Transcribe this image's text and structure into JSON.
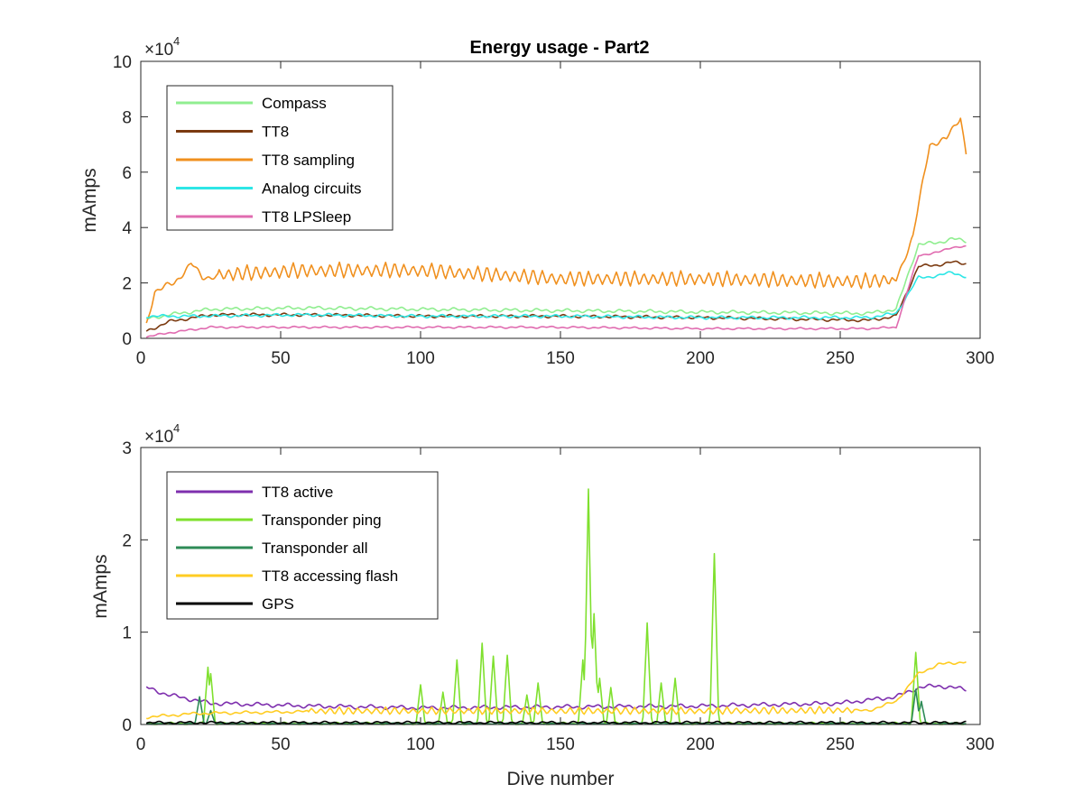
{
  "chart_data": [
    {
      "type": "line",
      "title": "Energy usage - Part2",
      "xlabel": "",
      "ylabel": "mAmps",
      "y_exponent_label": "×10",
      "y_exponent_power": "4",
      "xlim": [
        0,
        300
      ],
      "ylim": [
        0,
        100000
      ],
      "xticks": [
        0,
        50,
        100,
        150,
        200,
        250,
        300
      ],
      "xtick_labels": [
        "0",
        "50",
        "100",
        "150",
        "200",
        "250",
        "300"
      ],
      "yticks": [
        0,
        20000,
        40000,
        60000,
        80000,
        100000
      ],
      "ytick_labels": [
        "0",
        "2",
        "4",
        "6",
        "8",
        "10"
      ],
      "legend_position": "top-left",
      "grid": false,
      "series": [
        {
          "name": "Compass",
          "color": "#90EE90",
          "style": "flat",
          "anchors": [
            [
              2,
              7000
            ],
            [
              10,
              8500
            ],
            [
              25,
              10500
            ],
            [
              60,
              11000
            ],
            [
              100,
              10500
            ],
            [
              150,
              10000
            ],
            [
              200,
              9500
            ],
            [
              260,
              9000
            ],
            [
              270,
              10500
            ],
            [
              278,
              34000
            ],
            [
              285,
              34500
            ],
            [
              290,
              36000
            ],
            [
              295,
              35000
            ]
          ],
          "amp": 700,
          "period": 5
        },
        {
          "name": "TT8",
          "color": "#7B3A10",
          "style": "flat",
          "anchors": [
            [
              2,
              2500
            ],
            [
              10,
              6000
            ],
            [
              25,
              8500
            ],
            [
              60,
              8500
            ],
            [
              100,
              8000
            ],
            [
              150,
              8000
            ],
            [
              200,
              7500
            ],
            [
              260,
              6500
            ],
            [
              270,
              8000
            ],
            [
              278,
              26000
            ],
            [
              285,
              26500
            ],
            [
              290,
              27500
            ],
            [
              295,
              27000
            ]
          ],
          "amp": 600,
          "period": 5
        },
        {
          "name": "TT8 sampling",
          "color": "#F0901E",
          "style": "spiky",
          "anchors": [
            [
              2,
              5000
            ],
            [
              5,
              17000
            ],
            [
              12,
              20000
            ],
            [
              18,
              27000
            ],
            [
              22,
              22000
            ],
            [
              28,
              22500
            ],
            [
              60,
              24000
            ],
            [
              100,
              24000
            ],
            [
              150,
              21000
            ],
            [
              200,
              21000
            ],
            [
              260,
              20000
            ],
            [
              270,
              21000
            ],
            [
              276,
              37000
            ],
            [
              282,
              70000
            ],
            [
              288,
              72000
            ],
            [
              293,
              80000
            ],
            [
              295,
              67000
            ]
          ],
          "amp": 5000,
          "period": 3.3,
          "start": 28,
          "end": 268
        },
        {
          "name": "Analog circuits",
          "color": "#2EE6E6",
          "style": "flat",
          "anchors": [
            [
              2,
              8000
            ],
            [
              20,
              8000
            ],
            [
              60,
              8500
            ],
            [
              100,
              8000
            ],
            [
              150,
              8000
            ],
            [
              200,
              7500
            ],
            [
              260,
              7500
            ],
            [
              270,
              9000
            ],
            [
              278,
              22000
            ],
            [
              285,
              22500
            ],
            [
              290,
              24000
            ],
            [
              295,
              22000
            ]
          ],
          "amp": 600,
          "period": 4
        },
        {
          "name": "TT8 LPSleep",
          "color": "#E06CB0",
          "style": "flat",
          "anchors": [
            [
              2,
              500
            ],
            [
              10,
              2000
            ],
            [
              25,
              4000
            ],
            [
              60,
              4000
            ],
            [
              100,
              4000
            ],
            [
              150,
              4000
            ],
            [
              200,
              3500
            ],
            [
              260,
              3500
            ],
            [
              270,
              4000
            ],
            [
              278,
              30000
            ],
            [
              285,
              31000
            ],
            [
              290,
              33000
            ],
            [
              295,
              33000
            ]
          ],
          "amp": 400,
          "period": 4
        }
      ]
    },
    {
      "type": "line",
      "title": "",
      "xlabel": "Dive number",
      "ylabel": "mAmps",
      "y_exponent_label": "×10",
      "y_exponent_power": "4",
      "xlim": [
        0,
        300
      ],
      "ylim": [
        0,
        30000
      ],
      "xticks": [
        0,
        50,
        100,
        150,
        200,
        250,
        300
      ],
      "xtick_labels": [
        "0",
        "50",
        "100",
        "150",
        "200",
        "250",
        "300"
      ],
      "yticks": [
        0,
        10000,
        20000,
        30000
      ],
      "ytick_labels": [
        "0",
        "1",
        "2",
        "3"
      ],
      "legend_position": "top-left",
      "grid": false,
      "series": [
        {
          "name": "TT8 active",
          "color": "#7E2FAE",
          "style": "flat",
          "anchors": [
            [
              2,
              4000
            ],
            [
              10,
              3200
            ],
            [
              25,
              2300
            ],
            [
              60,
              2000
            ],
            [
              100,
              1800
            ],
            [
              150,
              1900
            ],
            [
              200,
              2000
            ],
            [
              250,
              2300
            ],
            [
              270,
              3000
            ],
            [
              278,
              4000
            ],
            [
              285,
              4200
            ],
            [
              295,
              3800
            ]
          ],
          "amp": 250,
          "period": 5
        },
        {
          "name": "Transponder ping",
          "color": "#7FE02E",
          "style": "peaks",
          "anchors": [
            [
              2,
              100
            ],
            [
              295,
              100
            ]
          ],
          "amp": 150,
          "period": 6,
          "peaks": [
            [
              24,
              6200
            ],
            [
              25,
              5500
            ],
            [
              100,
              4300
            ],
            [
              108,
              3500
            ],
            [
              113,
              7000
            ],
            [
              122,
              8800
            ],
            [
              126,
              7400
            ],
            [
              131,
              7500
            ],
            [
              138,
              3200
            ],
            [
              142,
              4500
            ],
            [
              158,
              7000
            ],
            [
              160,
              25500
            ],
            [
              162,
              12000
            ],
            [
              164,
              5000
            ],
            [
              168,
              4000
            ],
            [
              181,
              11000
            ],
            [
              186,
              4500
            ],
            [
              191,
              5000
            ],
            [
              205,
              18500
            ],
            [
              277,
              7800
            ]
          ]
        },
        {
          "name": "Transponder all",
          "color": "#2E8B57",
          "style": "peaks",
          "anchors": [
            [
              2,
              100
            ],
            [
              295,
              100
            ]
          ],
          "amp": 80,
          "period": 6,
          "peaks": [
            [
              21,
              3000
            ],
            [
              25,
              1500
            ],
            [
              277,
              3800
            ],
            [
              279,
              2500
            ]
          ]
        },
        {
          "name": "TT8 accessing flash",
          "color": "#FFCC22",
          "style": "spiky",
          "anchors": [
            [
              2,
              800
            ],
            [
              20,
              1200
            ],
            [
              60,
              1400
            ],
            [
              100,
              1400
            ],
            [
              150,
              1400
            ],
            [
              200,
              1400
            ],
            [
              260,
              1500
            ],
            [
              270,
              2500
            ],
            [
              278,
              5500
            ],
            [
              285,
              6500
            ],
            [
              295,
              6800
            ]
          ],
          "amp": 700,
          "period": 3.3,
          "start": 60,
          "end": 255
        },
        {
          "name": "GPS",
          "color": "#000000",
          "style": "flat",
          "anchors": [
            [
              2,
              200
            ],
            [
              295,
              200
            ]
          ],
          "amp": 150,
          "period": 5
        }
      ]
    }
  ]
}
